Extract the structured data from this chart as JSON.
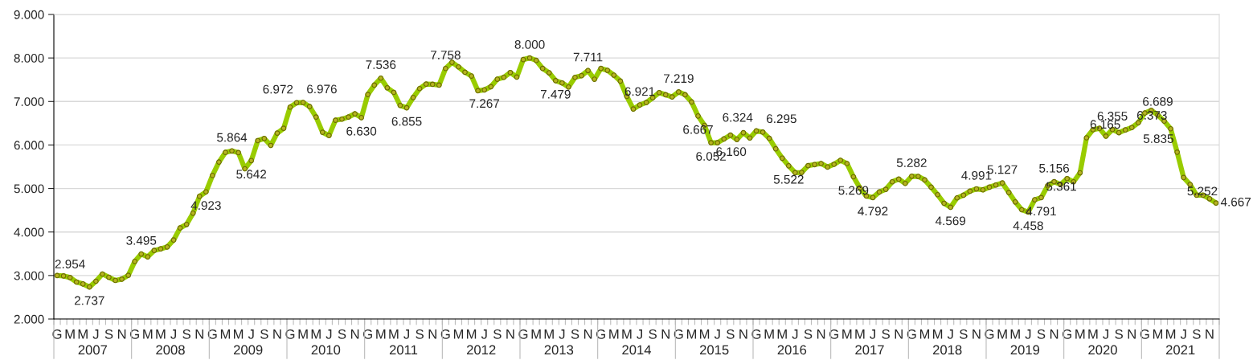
{
  "chart_data": {
    "type": "line",
    "categories": [
      "G",
      null,
      "M",
      null,
      "M",
      null,
      "J",
      null,
      "S",
      null,
      "N",
      null,
      "G",
      null,
      "M",
      null,
      "M",
      null,
      "J",
      null,
      "S",
      null,
      "N",
      null,
      "G",
      null,
      "M",
      null,
      "M",
      null,
      "J",
      null,
      "S",
      null,
      "N",
      null,
      "G",
      null,
      "M",
      null,
      "M",
      null,
      "J",
      null,
      "S",
      null,
      "N",
      null,
      "G",
      null,
      "M",
      null,
      "M",
      null,
      "J",
      null,
      "S",
      null,
      "N",
      null,
      "G",
      null,
      "M",
      null,
      "M",
      null,
      "J",
      null,
      "S",
      null,
      "N",
      null,
      "G",
      null,
      "M",
      null,
      "M",
      null,
      "J",
      null,
      "S",
      null,
      "N",
      null,
      "G",
      null,
      "M",
      null,
      "M",
      null,
      "J",
      null,
      "S",
      null,
      "N",
      null,
      "G",
      null,
      "M",
      null,
      "M",
      null,
      "J",
      null,
      "S",
      null,
      "N",
      null,
      "G",
      null,
      "M",
      null,
      "M",
      null,
      "J",
      null,
      "S",
      null,
      "N",
      null,
      "G",
      null,
      "M",
      null,
      "M",
      null,
      "J",
      null,
      "S",
      null,
      "N",
      null,
      "G",
      null,
      "M",
      null,
      "M",
      null,
      "J",
      null,
      "S",
      null,
      "N",
      null,
      "G",
      null,
      "M",
      null,
      "M",
      null,
      "J",
      null,
      "S",
      null,
      "N",
      null,
      "G",
      null,
      "M",
      null,
      "M",
      null,
      "J",
      null,
      "S",
      null,
      "N",
      null,
      "G",
      null,
      "M",
      null,
      "M",
      null,
      "J",
      null,
      "S",
      null,
      "N",
      null
    ],
    "series": [
      {
        "color": "#99cc00",
        "values": [
          3000,
          2990,
          2954,
          2850,
          2807,
          2737,
          2868,
          3034,
          2960,
          2887,
          2917,
          3004,
          3324,
          3495,
          3430,
          3576,
          3613,
          3656,
          3816,
          4094,
          4174,
          4432,
          4820,
          4923,
          5300,
          5608,
          5830,
          5864,
          5824,
          5454,
          5642,
          6101,
          6150,
          5990,
          6273,
          6384,
          6871,
          6972,
          6976,
          6883,
          6643,
          6292,
          6218,
          6569,
          6594,
          6643,
          6717,
          6630,
          7160,
          7376,
          7536,
          7314,
          7209,
          6908,
          6855,
          7092,
          7296,
          7400,
          7394,
          7376,
          7758,
          7900,
          7795,
          7672,
          7586,
          7247,
          7267,
          7340,
          7512,
          7555,
          7666,
          7561,
          7963,
          8000,
          7944,
          7759,
          7660,
          7479,
          7426,
          7333,
          7555,
          7593,
          7711,
          7512,
          7759,
          7716,
          7605,
          7469,
          7117,
          6827,
          6921,
          6975,
          7086,
          7204,
          7154,
          7105,
          7219,
          7154,
          6988,
          6667,
          6451,
          6052,
          6052,
          6140,
          6226,
          6127,
          6282,
          6160,
          6324,
          6295,
          6152,
          5912,
          5697,
          5522,
          5364,
          5370,
          5525,
          5550,
          5574,
          5494,
          5556,
          5648,
          5574,
          5269,
          5012,
          4827,
          4792,
          4920,
          4981,
          5154,
          5216,
          5117,
          5282,
          5278,
          5198,
          5031,
          4858,
          4660,
          4569,
          4784,
          4846,
          4938,
          4991,
          4969,
          5031,
          5080,
          5127,
          4907,
          4691,
          4512,
          4458,
          4741,
          4791,
          5062,
          5156,
          5093,
          5228,
          5154,
          5361,
          6165,
          6352,
          6383,
          6204,
          6355,
          6284,
          6346,
          6401,
          6512,
          6735,
          6796,
          6689,
          6549,
          6373,
          5835,
          5252,
          5093,
          4846,
          4846,
          4765,
          4667
        ],
        "value_labels": [
          null,
          null,
          "2.954",
          null,
          null,
          "2.737",
          null,
          null,
          null,
          null,
          null,
          null,
          null,
          "3.495",
          null,
          null,
          null,
          null,
          null,
          null,
          null,
          null,
          null,
          "4.923",
          null,
          null,
          null,
          "5.864",
          null,
          null,
          "5.642",
          null,
          null,
          null,
          null,
          null,
          null,
          "6.972",
          "6.976",
          null,
          null,
          null,
          null,
          null,
          null,
          null,
          null,
          "6.630",
          null,
          null,
          "7.536",
          null,
          null,
          null,
          "6.855",
          null,
          null,
          null,
          null,
          null,
          "7.758",
          null,
          null,
          null,
          null,
          null,
          "7.267",
          null,
          null,
          null,
          null,
          null,
          null,
          "8.000",
          null,
          null,
          null,
          "7.479",
          null,
          null,
          null,
          null,
          "7.711",
          null,
          null,
          null,
          null,
          null,
          null,
          null,
          "6.921",
          null,
          null,
          null,
          null,
          null,
          "7.219",
          null,
          null,
          "6.667",
          null,
          "6.052",
          null,
          null,
          null,
          null,
          null,
          "6.160",
          "6.324",
          "6.295",
          null,
          null,
          null,
          "5.522",
          null,
          null,
          null,
          null,
          null,
          null,
          null,
          null,
          null,
          "5.269",
          null,
          null,
          "4.792",
          null,
          null,
          null,
          null,
          null,
          "5.282",
          null,
          null,
          null,
          null,
          null,
          "4.569",
          null,
          null,
          null,
          "4.991",
          null,
          null,
          null,
          "5.127",
          null,
          null,
          null,
          "4.458",
          null,
          "4.791",
          null,
          "5.156",
          null,
          null,
          null,
          "5.361",
          "6.165",
          null,
          null,
          null,
          "6.355",
          null,
          null,
          null,
          null,
          null,
          null,
          "6.689",
          null,
          "6.373",
          "5.835",
          "5.252",
          null,
          null,
          null,
          null,
          "4.667"
        ]
      }
    ],
    "annotations": [
      "2007",
      "2008",
      "2009",
      "2010",
      "2011",
      "2012",
      "2013",
      "2014",
      "2015",
      "2016",
      "2017",
      "2018",
      "2019",
      "2020",
      "2021"
    ],
    "ylim": [
      2000,
      9000
    ],
    "yticks": [
      {
        "value": 2000,
        "label": "2.000"
      },
      {
        "value": 3000,
        "label": "3.000"
      },
      {
        "value": 4000,
        "label": "4.000"
      },
      {
        "value": 5000,
        "label": "5.000"
      },
      {
        "value": 6000,
        "label": "6.000"
      },
      {
        "value": 7000,
        "label": "7.000"
      },
      {
        "value": 8000,
        "label": "8.000"
      },
      {
        "value": 9000,
        "label": "9.000"
      }
    ],
    "grid": "y",
    "marker": "circle",
    "line_style": "solid",
    "legend": false
  }
}
